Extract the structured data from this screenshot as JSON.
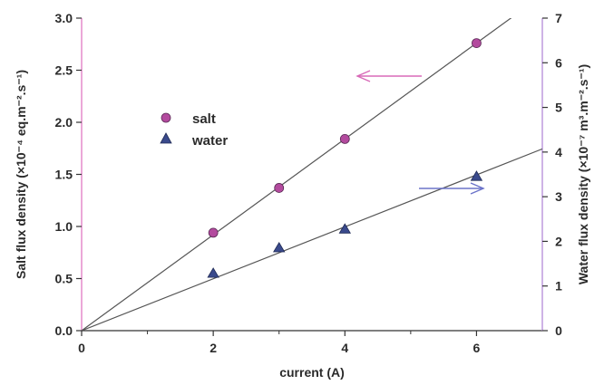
{
  "chart_data": {
    "type": "scatter",
    "xlabel": "current (A)",
    "ylabel_left": "Salt flux density (×10⁻⁴ eq.m⁻².s⁻¹)",
    "ylabel_right": "Water flux density (×10⁻⁷ m³.m⁻².s⁻¹)",
    "xlim": [
      0,
      7
    ],
    "ylim_left": [
      0,
      3
    ],
    "ylim_right": [
      0,
      7
    ],
    "x_ticks": [
      "0",
      "2",
      "4",
      "6"
    ],
    "x_tick_values": [
      0,
      2,
      4,
      6
    ],
    "y_left_ticks": [
      "0.0",
      "0.5",
      "1.0",
      "1.5",
      "2.0",
      "2.5",
      "3.0"
    ],
    "y_left_tick_values": [
      0,
      0.5,
      1.0,
      1.5,
      2.0,
      2.5,
      3.0
    ],
    "y_right_ticks": [
      "0",
      "1",
      "2",
      "3",
      "4",
      "5",
      "6",
      "7"
    ],
    "y_right_tick_values": [
      0,
      1,
      2,
      3,
      4,
      5,
      6,
      7
    ],
    "series": [
      {
        "name": "salt",
        "axis": "left",
        "marker": "circle",
        "color": "#b34a9e",
        "x": [
          2,
          3,
          4,
          6
        ],
        "values": [
          0.94,
          1.37,
          1.84,
          2.76
        ],
        "fit_line": {
          "x": [
            0,
            7
          ],
          "y": [
            0,
            3.22
          ]
        }
      },
      {
        "name": "water",
        "axis": "right",
        "marker": "triangle",
        "color": "#3a4a8c",
        "x": [
          2,
          3,
          4,
          6
        ],
        "values": [
          1.28,
          1.85,
          2.27,
          3.45
        ],
        "fit_line": {
          "x": [
            0,
            7
          ],
          "y": [
            0,
            4.07
          ]
        }
      }
    ],
    "annotations": [
      {
        "type": "arrow",
        "direction": "left",
        "color": "#d86ab8",
        "indicates_axis": "left"
      },
      {
        "type": "arrow",
        "direction": "right",
        "color": "#6b73c9",
        "indicates_axis": "right"
      }
    ],
    "legend": {
      "placement": "upper-left",
      "entries": [
        "salt",
        "water"
      ]
    },
    "grid": false,
    "colors": {
      "left_axis": "#e07ac4",
      "right_axis": "#b48ad8",
      "fit_line": "#555555"
    }
  }
}
